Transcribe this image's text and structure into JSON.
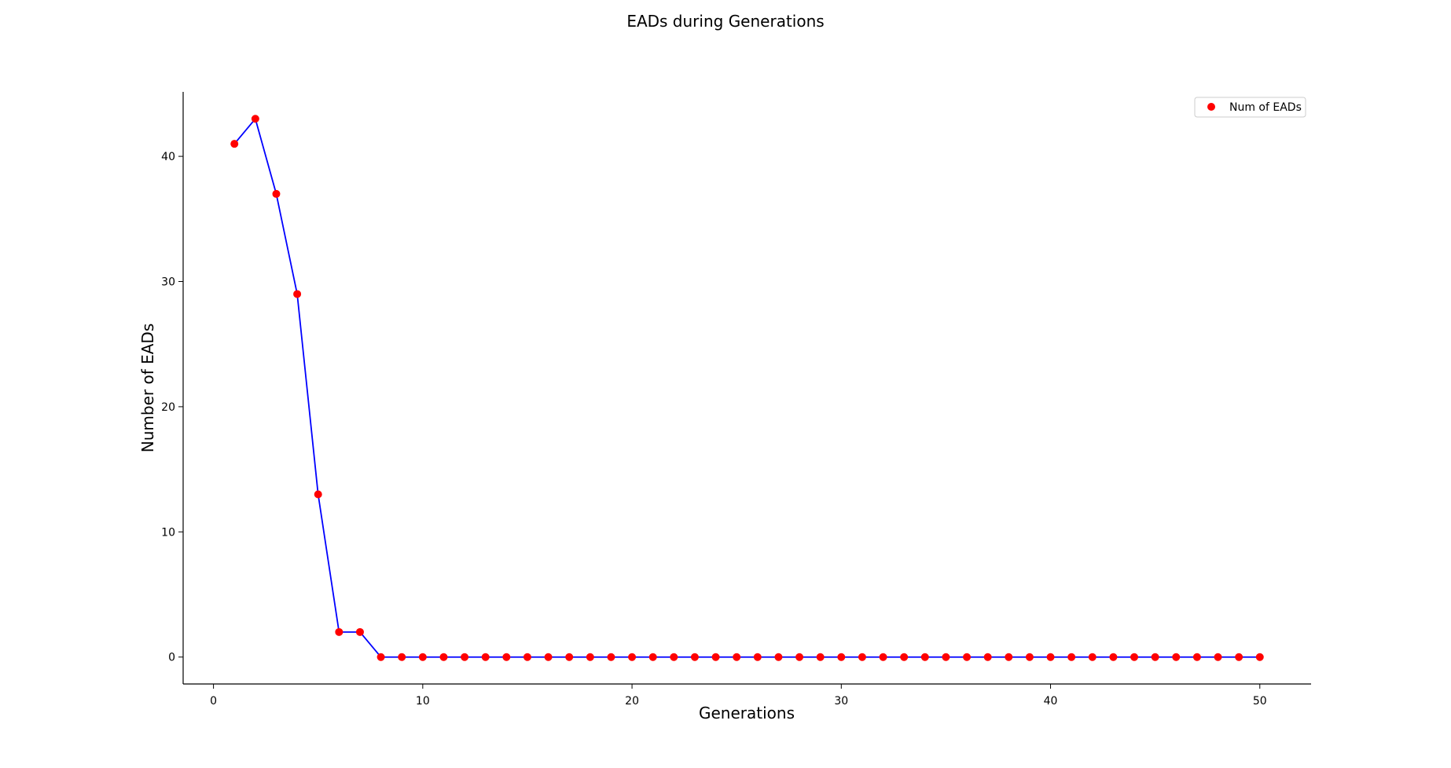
{
  "chart_data": {
    "type": "line",
    "title": "EADs during Generations",
    "xlabel": "Generations",
    "ylabel": "Number of EADs",
    "x": [
      1,
      2,
      3,
      4,
      5,
      6,
      7,
      8,
      9,
      10,
      11,
      12,
      13,
      14,
      15,
      16,
      17,
      18,
      19,
      20,
      21,
      22,
      23,
      24,
      25,
      26,
      27,
      28,
      29,
      30,
      31,
      32,
      33,
      34,
      35,
      36,
      37,
      38,
      39,
      40,
      41,
      42,
      43,
      44,
      45,
      46,
      47,
      48,
      49,
      50
    ],
    "series": [
      {
        "name": "Num of EADs",
        "values": [
          41,
          43,
          37,
          29,
          13,
          2,
          2,
          0,
          0,
          0,
          0,
          0,
          0,
          0,
          0,
          0,
          0,
          0,
          0,
          0,
          0,
          0,
          0,
          0,
          0,
          0,
          0,
          0,
          0,
          0,
          0,
          0,
          0,
          0,
          0,
          0,
          0,
          0,
          0,
          0,
          0,
          0,
          0,
          0,
          0,
          0,
          0,
          0,
          0,
          0
        ],
        "line_color": "#0000ff",
        "marker_color": "#ff0000"
      }
    ],
    "xlim": [
      -1.45,
      52.45
    ],
    "ylim": [
      -2.15,
      45.15
    ],
    "xticks": [
      0,
      10,
      20,
      30,
      40,
      50
    ],
    "yticks": [
      0,
      10,
      20,
      30,
      40
    ],
    "grid": false,
    "legend": {
      "placement": "top-right",
      "entries": [
        "Num of EADs"
      ]
    }
  }
}
